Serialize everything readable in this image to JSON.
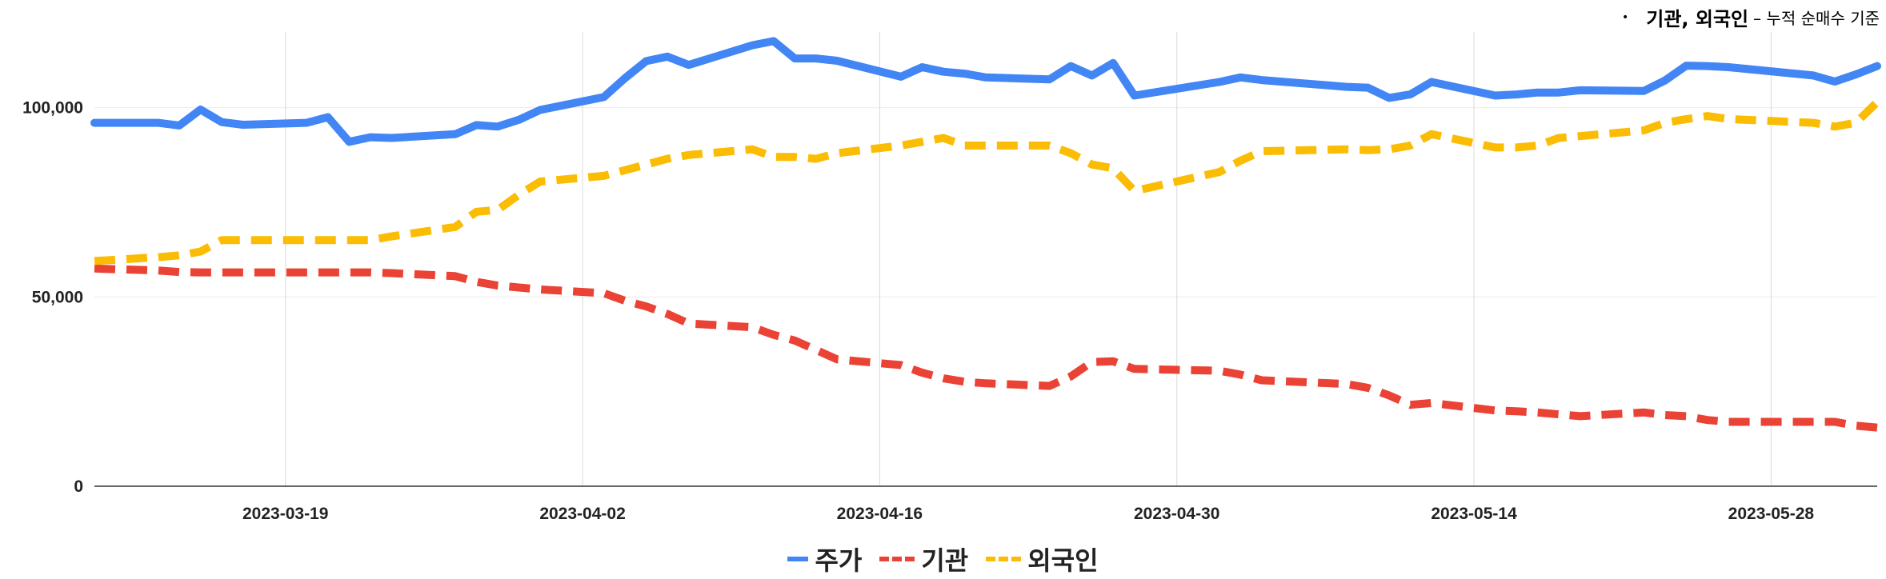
{
  "note": {
    "bullet": "•",
    "bold_text": "기관, 외국인",
    "small_text": "– 누적 순매수 기준"
  },
  "chart_data": {
    "type": "line",
    "ylim": [
      0,
      120000
    ],
    "y_ticks": [
      0,
      50000,
      100000
    ],
    "y_tick_labels": [
      "0",
      "50,000",
      "100,000"
    ],
    "x_ticks": [
      "2023-03-19",
      "2023-04-02",
      "2023-04-16",
      "2023-04-30",
      "2023-05-14",
      "2023-05-28"
    ],
    "x": [
      "2023-03-10",
      "2023-03-13",
      "2023-03-14",
      "2023-03-15",
      "2023-03-16",
      "2023-03-17",
      "2023-03-20",
      "2023-03-21",
      "2023-03-22",
      "2023-03-23",
      "2023-03-24",
      "2023-03-27",
      "2023-03-28",
      "2023-03-29",
      "2023-03-30",
      "2023-03-31",
      "2023-04-03",
      "2023-04-04",
      "2023-04-05",
      "2023-04-06",
      "2023-04-07",
      "2023-04-10",
      "2023-04-11",
      "2023-04-12",
      "2023-04-13",
      "2023-04-14",
      "2023-04-17",
      "2023-04-18",
      "2023-04-19",
      "2023-04-20",
      "2023-04-21",
      "2023-04-24",
      "2023-04-25",
      "2023-04-26",
      "2023-04-27",
      "2023-04-28",
      "2023-05-02",
      "2023-05-03",
      "2023-05-04",
      "2023-05-08",
      "2023-05-09",
      "2023-05-10",
      "2023-05-11",
      "2023-05-12",
      "2023-05-15",
      "2023-05-16",
      "2023-05-17",
      "2023-05-18",
      "2023-05-19",
      "2023-05-22",
      "2023-05-23",
      "2023-05-24",
      "2023-05-25",
      "2023-05-26",
      "2023-05-30",
      "2023-05-31",
      "2023-06-01",
      "2023-06-02"
    ],
    "series": [
      {
        "name": "주가",
        "color": "#4285f4",
        "dash": "solid",
        "values": [
          96000,
          96000,
          95300,
          99500,
          96200,
          95500,
          96000,
          97500,
          91000,
          92200,
          92000,
          93000,
          95400,
          95000,
          96800,
          99400,
          102800,
          107800,
          112300,
          113500,
          111300,
          116500,
          117600,
          113000,
          113000,
          112400,
          108200,
          110700,
          109500,
          109000,
          108000,
          107500,
          111000,
          108500,
          111800,
          103200,
          106800,
          108000,
          107300,
          105500,
          105300,
          102600,
          103500,
          106800,
          103200,
          103500,
          104000,
          104000,
          104600,
          104400,
          107200,
          111100,
          111000,
          110700,
          108500,
          106900,
          108800,
          111000
        ]
      },
      {
        "name": "기관",
        "color": "#ea4335",
        "dash": "dashed",
        "values": [
          57500,
          57000,
          56600,
          56500,
          56500,
          56500,
          56500,
          56500,
          56500,
          56500,
          56300,
          55500,
          54000,
          53000,
          52500,
          52000,
          51000,
          49000,
          47500,
          45500,
          43000,
          42000,
          40000,
          38500,
          36000,
          33500,
          32000,
          30000,
          28500,
          27600,
          27200,
          26500,
          29000,
          32800,
          33000,
          31000,
          30500,
          29500,
          28000,
          27000,
          26000,
          24000,
          21500,
          22000,
          20000,
          19800,
          19500,
          19000,
          18500,
          19500,
          18800,
          18500,
          17500,
          17000,
          17000,
          17000,
          16000,
          15500
        ]
      },
      {
        "name": "외국인",
        "color": "#fbbc04",
        "dash": "dashed",
        "values": [
          59500,
          60500,
          61000,
          62000,
          65000,
          65000,
          65000,
          65000,
          65000,
          65000,
          66000,
          68500,
          72500,
          73000,
          77000,
          80500,
          82000,
          83500,
          85000,
          86500,
          87500,
          89000,
          87000,
          87000,
          86500,
          88000,
          90000,
          91000,
          92000,
          90000,
          90000,
          90000,
          88000,
          85000,
          84000,
          78000,
          83000,
          86000,
          88500,
          89000,
          88800,
          89000,
          90000,
          93000,
          89500,
          89500,
          90000,
          92000,
          92500,
          94000,
          96000,
          97000,
          97800,
          97000,
          96000,
          95000,
          96000,
          101500
        ]
      }
    ]
  }
}
